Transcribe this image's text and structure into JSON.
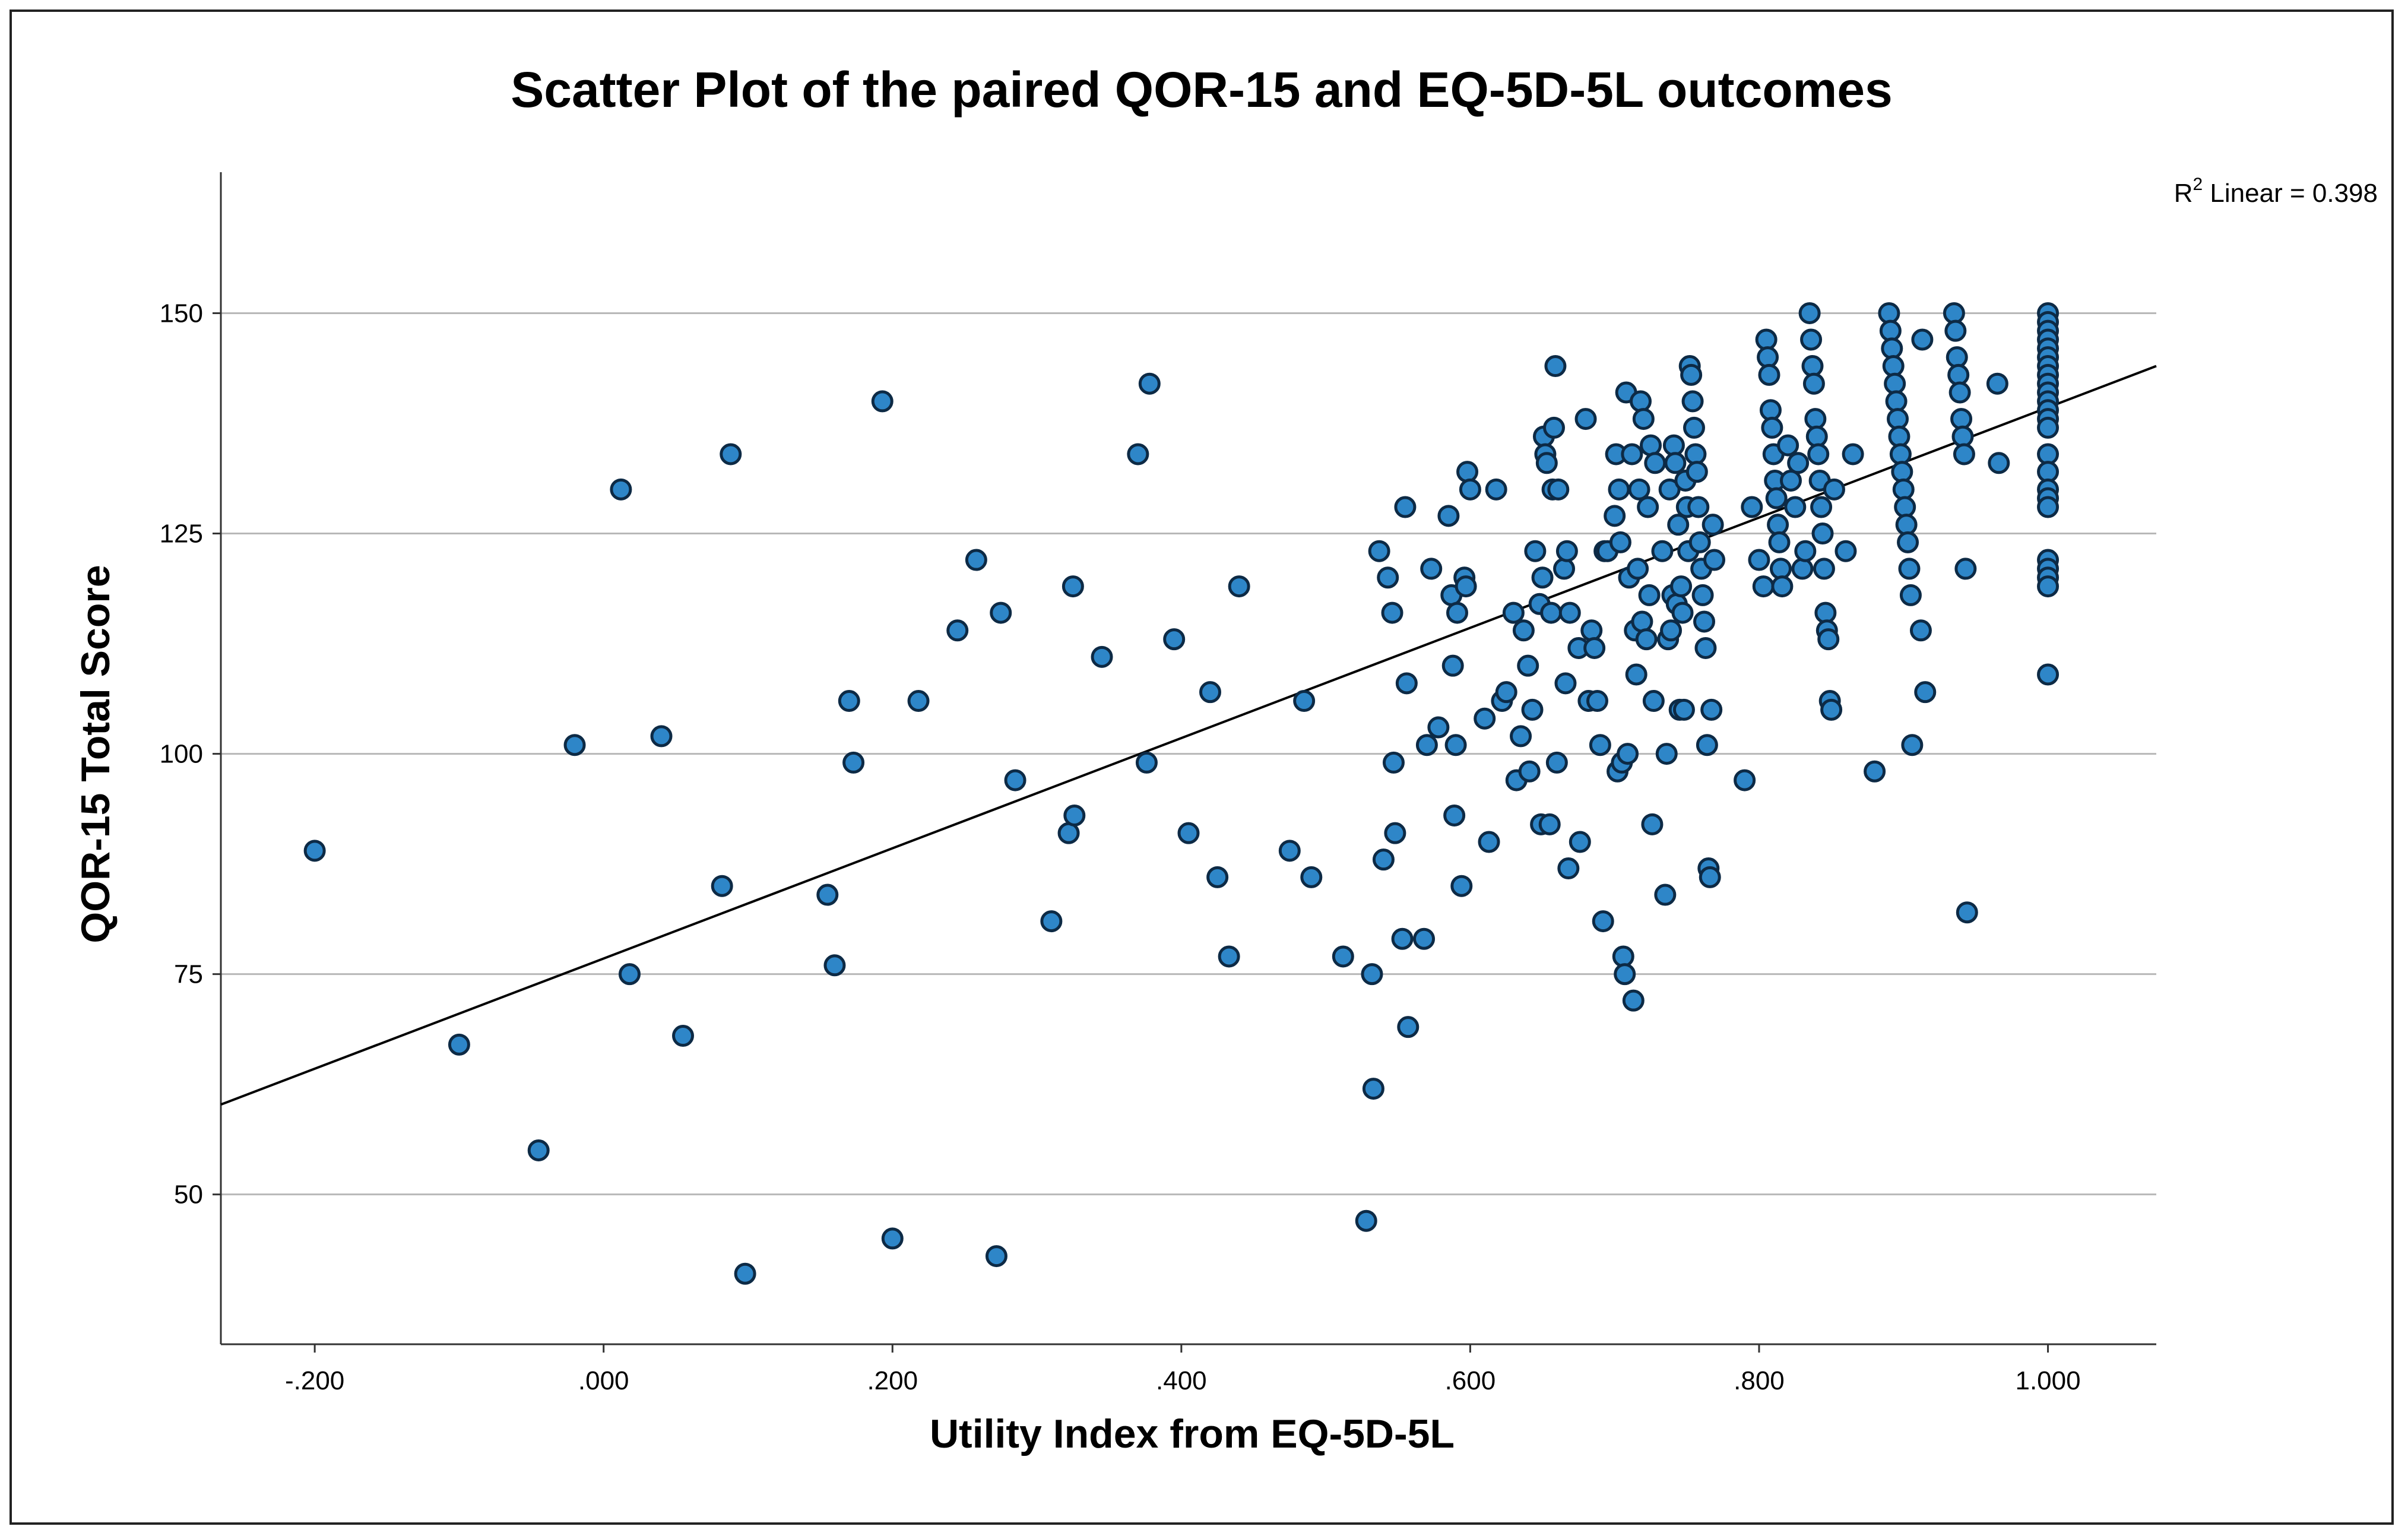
{
  "chart_data": {
    "type": "scatter",
    "title": "Scatter Plot of the paired QOR-15 and EQ-5D-5L outcomes",
    "xlabel": "Utility Index from EQ-5D-5L",
    "ylabel": "QOR-15 Total Score",
    "xlim": [
      -0.265,
      1.075
    ],
    "ylim": [
      33,
      166
    ],
    "x_ticks": [
      -0.2,
      0.0,
      0.2,
      0.4,
      0.6,
      0.8,
      1.0
    ],
    "x_tick_labels": [
      "-.200",
      ".000",
      ".200",
      ".400",
      ".600",
      ".800",
      "1.000"
    ],
    "y_ticks": [
      50,
      75,
      100,
      125,
      150
    ],
    "y_tick_labels": [
      "50",
      "75",
      "100",
      "125",
      "150"
    ],
    "gridlines": "horizontal",
    "fit_line": {
      "label_prefix": "R",
      "label_sup": "2",
      "label_suffix": " Linear = 0.398",
      "x0": -0.265,
      "y0": 60.2,
      "x1": 1.075,
      "y1": 144.0
    },
    "marker_color": "#2e86c8",
    "marker_edge_color": "#0d2a45",
    "line_color": "#000000",
    "grid_color": "#b8b8b8",
    "points": [
      [
        -0.2,
        89
      ],
      [
        -0.1,
        67
      ],
      [
        -0.045,
        55
      ],
      [
        -0.02,
        101
      ],
      [
        0.012,
        130
      ],
      [
        0.018,
        75
      ],
      [
        0.04,
        102
      ],
      [
        0.055,
        68
      ],
      [
        0.082,
        85
      ],
      [
        0.088,
        134
      ],
      [
        0.098,
        41
      ],
      [
        0.155,
        84
      ],
      [
        0.16,
        76
      ],
      [
        0.17,
        106
      ],
      [
        0.173,
        99
      ],
      [
        0.193,
        140
      ],
      [
        0.2,
        45
      ],
      [
        0.218,
        106
      ],
      [
        0.245,
        114
      ],
      [
        0.258,
        122
      ],
      [
        0.272,
        43
      ],
      [
        0.275,
        116
      ],
      [
        0.285,
        97
      ],
      [
        0.31,
        81
      ],
      [
        0.322,
        91
      ],
      [
        0.325,
        119
      ],
      [
        0.326,
        93
      ],
      [
        0.345,
        111
      ],
      [
        0.37,
        134
      ],
      [
        0.376,
        99
      ],
      [
        0.378,
        142
      ],
      [
        0.395,
        113
      ],
      [
        0.405,
        91
      ],
      [
        0.42,
        107
      ],
      [
        0.425,
        86
      ],
      [
        0.433,
        77
      ],
      [
        0.44,
        119
      ],
      [
        0.475,
        89
      ],
      [
        0.485,
        106
      ],
      [
        0.49,
        86
      ],
      [
        0.512,
        77
      ],
      [
        0.528,
        47
      ],
      [
        0.532,
        75
      ],
      [
        0.533,
        62
      ],
      [
        0.537,
        123
      ],
      [
        0.54,
        88
      ],
      [
        0.543,
        120
      ],
      [
        0.546,
        116
      ],
      [
        0.547,
        99
      ],
      [
        0.548,
        91
      ],
      [
        0.553,
        79
      ],
      [
        0.555,
        128
      ],
      [
        0.556,
        108
      ],
      [
        0.557,
        69
      ],
      [
        0.568,
        79
      ],
      [
        0.57,
        101
      ],
      [
        0.573,
        121
      ],
      [
        0.578,
        103
      ],
      [
        0.585,
        127
      ],
      [
        0.587,
        118
      ],
      [
        0.588,
        110
      ],
      [
        0.589,
        93
      ],
      [
        0.59,
        101
      ],
      [
        0.591,
        116
      ],
      [
        0.594,
        85
      ],
      [
        0.596,
        120
      ],
      [
        0.597,
        119
      ],
      [
        0.598,
        132
      ],
      [
        0.6,
        130
      ],
      [
        0.61,
        104
      ],
      [
        0.613,
        90
      ],
      [
        0.618,
        130
      ],
      [
        0.622,
        106
      ],
      [
        0.625,
        107
      ],
      [
        0.63,
        116
      ],
      [
        0.632,
        97
      ],
      [
        0.635,
        102
      ],
      [
        0.637,
        114
      ],
      [
        0.64,
        110
      ],
      [
        0.641,
        98
      ],
      [
        0.643,
        105
      ],
      [
        0.645,
        123
      ],
      [
        0.648,
        117
      ],
      [
        0.649,
        92
      ],
      [
        0.65,
        120
      ],
      [
        0.651,
        136
      ],
      [
        0.652,
        134
      ],
      [
        0.653,
        133
      ],
      [
        0.655,
        92
      ],
      [
        0.656,
        116
      ],
      [
        0.657,
        130
      ],
      [
        0.658,
        137
      ],
      [
        0.659,
        144
      ],
      [
        0.66,
        99
      ],
      [
        0.661,
        130
      ],
      [
        0.665,
        121
      ],
      [
        0.666,
        108
      ],
      [
        0.667,
        123
      ],
      [
        0.668,
        87
      ],
      [
        0.669,
        116
      ],
      [
        0.675,
        112
      ],
      [
        0.676,
        90
      ],
      [
        0.68,
        138
      ],
      [
        0.682,
        106
      ],
      [
        0.684,
        114
      ],
      [
        0.686,
        112
      ],
      [
        0.688,
        106
      ],
      [
        0.69,
        101
      ],
      [
        0.692,
        81
      ],
      [
        0.693,
        123
      ],
      [
        0.695,
        123
      ],
      [
        0.7,
        127
      ],
      [
        0.701,
        134
      ],
      [
        0.702,
        98
      ],
      [
        0.703,
        130
      ],
      [
        0.704,
        124
      ],
      [
        0.705,
        99
      ],
      [
        0.706,
        77
      ],
      [
        0.707,
        75
      ],
      [
        0.708,
        141
      ],
      [
        0.709,
        100
      ],
      [
        0.71,
        120
      ],
      [
        0.712,
        134
      ],
      [
        0.713,
        72
      ],
      [
        0.714,
        114
      ],
      [
        0.715,
        109
      ],
      [
        0.716,
        121
      ],
      [
        0.717,
        130
      ],
      [
        0.718,
        140
      ],
      [
        0.719,
        115
      ],
      [
        0.72,
        138
      ],
      [
        0.722,
        113
      ],
      [
        0.723,
        128
      ],
      [
        0.724,
        118
      ],
      [
        0.725,
        135
      ],
      [
        0.726,
        92
      ],
      [
        0.727,
        106
      ],
      [
        0.728,
        133
      ],
      [
        0.733,
        123
      ],
      [
        0.735,
        84
      ],
      [
        0.736,
        100
      ],
      [
        0.737,
        113
      ],
      [
        0.738,
        130
      ],
      [
        0.739,
        114
      ],
      [
        0.74,
        118
      ],
      [
        0.741,
        135
      ],
      [
        0.742,
        133
      ],
      [
        0.743,
        117
      ],
      [
        0.744,
        126
      ],
      [
        0.745,
        105
      ],
      [
        0.746,
        119
      ],
      [
        0.747,
        116
      ],
      [
        0.748,
        105
      ],
      [
        0.749,
        131
      ],
      [
        0.75,
        128
      ],
      [
        0.751,
        123
      ],
      [
        0.752,
        144
      ],
      [
        0.753,
        143
      ],
      [
        0.754,
        140
      ],
      [
        0.755,
        137
      ],
      [
        0.756,
        134
      ],
      [
        0.757,
        132
      ],
      [
        0.758,
        128
      ],
      [
        0.759,
        124
      ],
      [
        0.76,
        121
      ],
      [
        0.761,
        118
      ],
      [
        0.762,
        115
      ],
      [
        0.763,
        112
      ],
      [
        0.764,
        101
      ],
      [
        0.765,
        87
      ],
      [
        0.766,
        86
      ],
      [
        0.767,
        105
      ],
      [
        0.768,
        126
      ],
      [
        0.769,
        122
      ],
      [
        0.79,
        97
      ],
      [
        0.795,
        128
      ],
      [
        0.8,
        122
      ],
      [
        0.803,
        119
      ],
      [
        0.805,
        147
      ],
      [
        0.806,
        145
      ],
      [
        0.807,
        143
      ],
      [
        0.808,
        139
      ],
      [
        0.809,
        137
      ],
      [
        0.81,
        134
      ],
      [
        0.811,
        131
      ],
      [
        0.812,
        129
      ],
      [
        0.813,
        126
      ],
      [
        0.814,
        124
      ],
      [
        0.815,
        121
      ],
      [
        0.816,
        119
      ],
      [
        0.82,
        135
      ],
      [
        0.822,
        131
      ],
      [
        0.825,
        128
      ],
      [
        0.827,
        133
      ],
      [
        0.83,
        121
      ],
      [
        0.832,
        123
      ],
      [
        0.835,
        150
      ],
      [
        0.836,
        147
      ],
      [
        0.837,
        144
      ],
      [
        0.838,
        142
      ],
      [
        0.839,
        138
      ],
      [
        0.84,
        136
      ],
      [
        0.841,
        134
      ],
      [
        0.842,
        131
      ],
      [
        0.843,
        128
      ],
      [
        0.844,
        125
      ],
      [
        0.845,
        121
      ],
      [
        0.846,
        116
      ],
      [
        0.847,
        114
      ],
      [
        0.848,
        113
      ],
      [
        0.849,
        106
      ],
      [
        0.85,
        105
      ],
      [
        0.852,
        130
      ],
      [
        0.86,
        123
      ],
      [
        0.865,
        134
      ],
      [
        0.88,
        98
      ],
      [
        0.89,
        150
      ],
      [
        0.891,
        148
      ],
      [
        0.892,
        146
      ],
      [
        0.893,
        144
      ],
      [
        0.894,
        142
      ],
      [
        0.895,
        140
      ],
      [
        0.896,
        138
      ],
      [
        0.897,
        136
      ],
      [
        0.898,
        134
      ],
      [
        0.899,
        132
      ],
      [
        0.9,
        130
      ],
      [
        0.901,
        128
      ],
      [
        0.902,
        126
      ],
      [
        0.903,
        124
      ],
      [
        0.904,
        121
      ],
      [
        0.905,
        118
      ],
      [
        0.906,
        101
      ],
      [
        0.912,
        114
      ],
      [
        0.915,
        107
      ],
      [
        0.913,
        147
      ],
      [
        0.935,
        150
      ],
      [
        0.936,
        148
      ],
      [
        0.937,
        145
      ],
      [
        0.938,
        143
      ],
      [
        0.939,
        141
      ],
      [
        0.94,
        138
      ],
      [
        0.941,
        136
      ],
      [
        0.942,
        134
      ],
      [
        0.943,
        121
      ],
      [
        0.944,
        82
      ],
      [
        0.965,
        142
      ],
      [
        0.966,
        133
      ],
      [
        1.0,
        150
      ],
      [
        1.0,
        149
      ],
      [
        1.0,
        148
      ],
      [
        1.0,
        147
      ],
      [
        1.0,
        146
      ],
      [
        1.0,
        145
      ],
      [
        1.0,
        144
      ],
      [
        1.0,
        143
      ],
      [
        1.0,
        142
      ],
      [
        1.0,
        141
      ],
      [
        1.0,
        140
      ],
      [
        1.0,
        139
      ],
      [
        1.0,
        138
      ],
      [
        1.0,
        137
      ],
      [
        1.0,
        134
      ],
      [
        1.0,
        132
      ],
      [
        1.0,
        130
      ],
      [
        1.0,
        129
      ],
      [
        1.0,
        128
      ],
      [
        1.0,
        122
      ],
      [
        1.0,
        121
      ],
      [
        1.0,
        120
      ],
      [
        1.0,
        119
      ],
      [
        1.0,
        109
      ]
    ]
  }
}
